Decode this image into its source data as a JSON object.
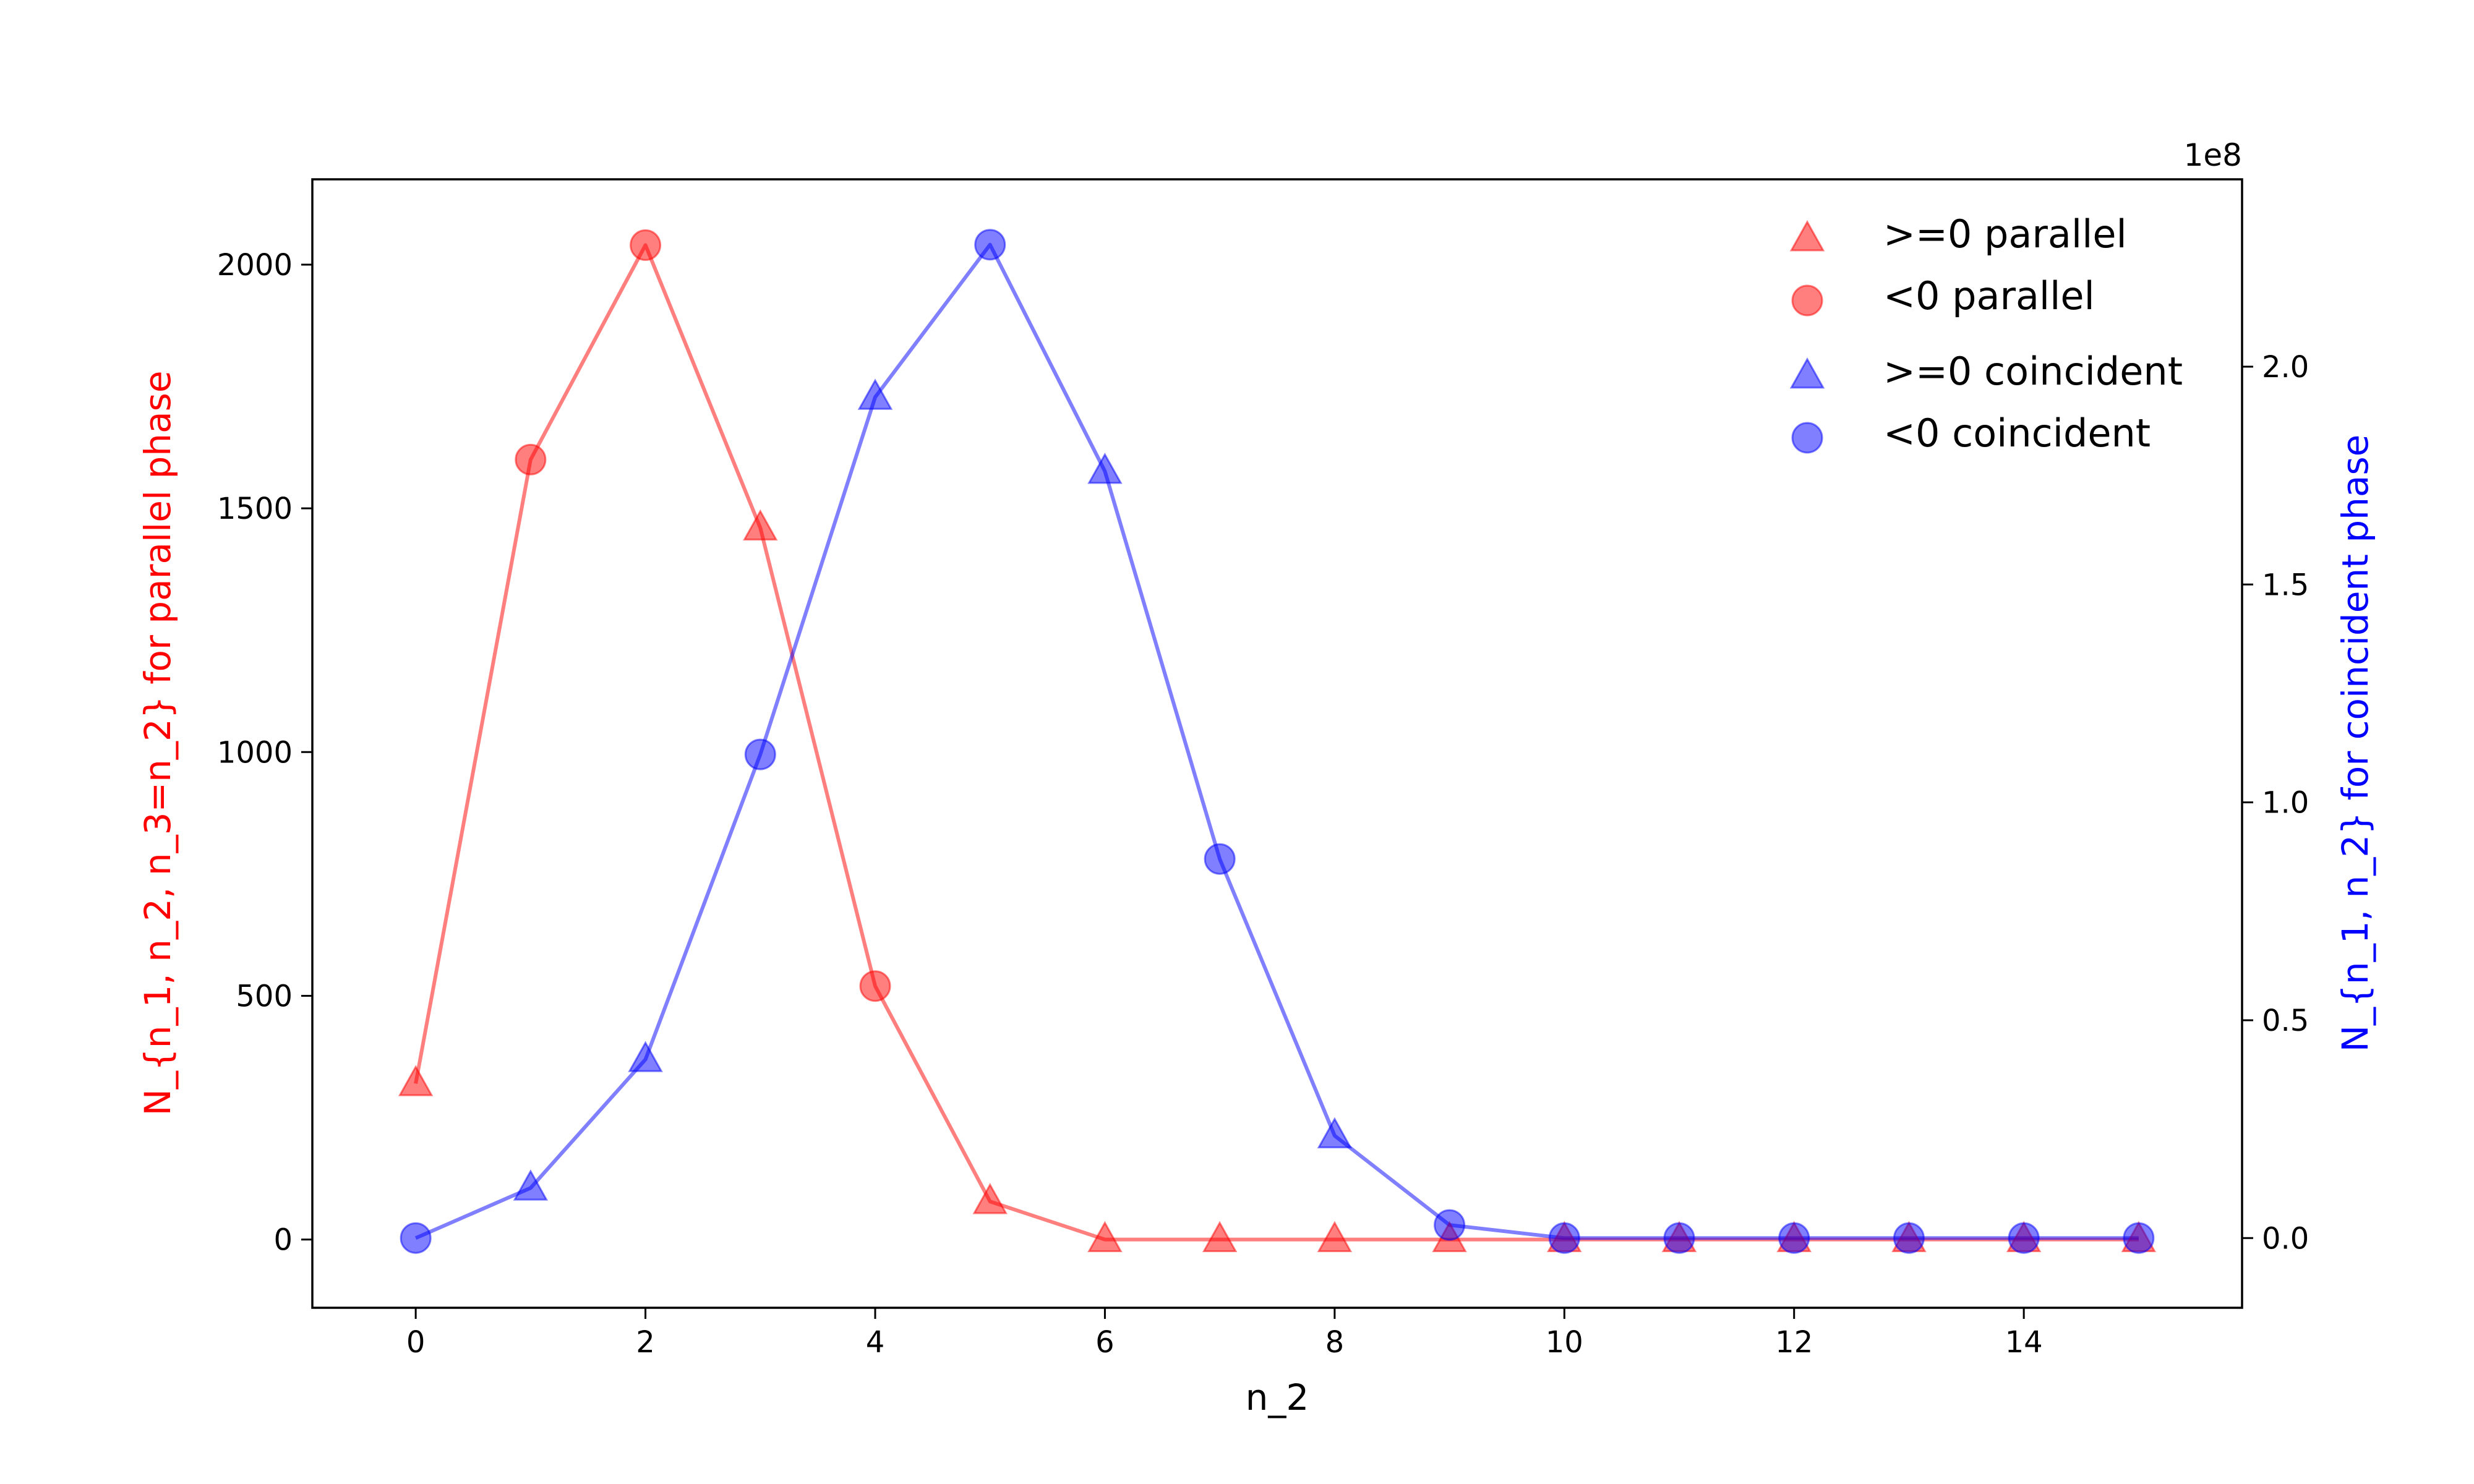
{
  "chart_data": {
    "type": "line",
    "x": [
      0,
      1,
      2,
      3,
      4,
      5,
      6,
      7,
      8,
      9,
      10,
      11,
      12,
      13,
      14,
      15
    ],
    "xlabel": "n_2",
    "xlim": [
      -0.9,
      15.9
    ],
    "xticks": [
      "0",
      "2",
      "4",
      "6",
      "8",
      "10",
      "12",
      "14"
    ],
    "y_left": {
      "label": "N_{n_1, n_2, n_3=n_2} for parallel phase",
      "color": "#ff0000",
      "ylim": [
        -140,
        2175
      ],
      "ticks": [
        "0",
        "500",
        "1000",
        "1500",
        "2000"
      ],
      "values": [
        320,
        1600,
        2040,
        1460,
        520,
        78,
        0,
        0,
        0,
        0,
        0,
        0,
        0,
        0,
        0,
        0
      ]
    },
    "y_right": {
      "label": "N_{n_1, n_2} for coincident phase",
      "color": "#0000ff",
      "ylim": [
        -0.16,
        2.43
      ],
      "ticks": [
        "0.0",
        "0.5",
        "1.0",
        "1.5",
        "2.0"
      ],
      "multiplier": "1e8",
      "values": [
        0.0,
        0.115,
        0.41,
        1.11,
        1.93,
        2.28,
        1.76,
        0.87,
        0.235,
        0.03,
        0.0,
        0.0,
        0.0,
        0.0,
        0.0,
        0.0
      ]
    },
    "series": [
      {
        "name": ">=0 parallel",
        "axis": "left",
        "marker": "triangle",
        "color": "#ff0000",
        "indices": [
          0,
          3,
          5,
          6,
          7,
          8,
          9,
          10,
          11,
          12,
          13,
          14,
          15
        ]
      },
      {
        "name": "<0 parallel",
        "axis": "left",
        "marker": "circle",
        "color": "#ff0000",
        "indices": [
          1,
          2,
          4
        ]
      },
      {
        "name": ">=0 coincident",
        "axis": "right",
        "marker": "triangle",
        "color": "#0000ff",
        "indices": [
          1,
          2,
          4,
          6,
          8
        ]
      },
      {
        "name": "<0 coincident",
        "axis": "right",
        "marker": "circle",
        "color": "#0000ff",
        "indices": [
          0,
          3,
          5,
          7,
          9,
          10,
          11,
          12,
          13,
          14,
          15
        ]
      }
    ],
    "legend_position": "top-right",
    "grid": false
  }
}
